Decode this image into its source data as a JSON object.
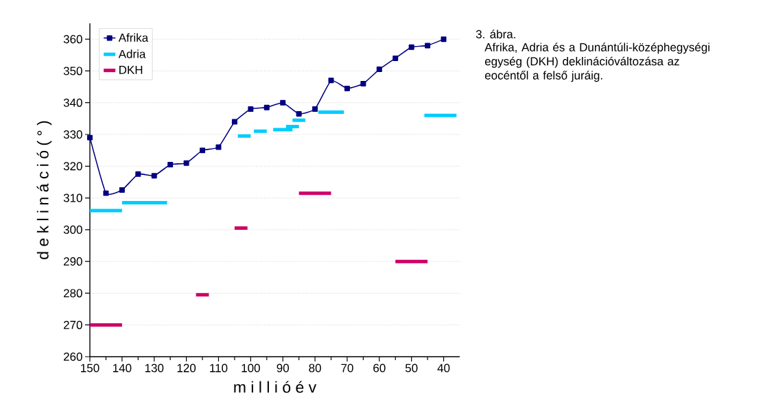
{
  "chart_data": {
    "type": "line",
    "xlabel": "m i l l i ó é v",
    "ylabel": "d e k l i n á c i ó ( ° )",
    "annotations": [
      "3. ábra.",
      "Afrika, Adria és a Dunántúli-középhegységi egység (DKH) deklinációváltozása az eocéntől a felső juráig."
    ],
    "xlim": [
      150,
      35
    ],
    "ylim": [
      260,
      365
    ],
    "xticks": [
      150,
      {
        "value": 145,
        "label": null
      },
      140,
      {
        "value": 135,
        "label": null
      },
      130,
      {
        "value": 125,
        "label": null
      },
      120,
      {
        "value": 115,
        "label": null
      },
      110,
      {
        "value": 105,
        "label": null
      },
      100,
      {
        "value": 95,
        "label": null
      },
      90,
      {
        "value": 85,
        "label": null
      },
      80,
      {
        "value": 75,
        "label": null
      },
      70,
      {
        "value": 65,
        "label": null
      },
      60,
      {
        "value": 55,
        "label": null
      },
      50,
      {
        "value": 45,
        "label": null
      },
      40
    ],
    "yticks": [
      260,
      270,
      280,
      290,
      300,
      310,
      320,
      330,
      340,
      350,
      360
    ],
    "grid": "y",
    "legend": "top left",
    "series": [
      {
        "name": "Afrika",
        "color": "#000080",
        "marker": "square",
        "line_style": "solid",
        "x": [
          150,
          145,
          140,
          135,
          130,
          125,
          120,
          115,
          110,
          105,
          100,
          95,
          90,
          85,
          80,
          75,
          70,
          65,
          60,
          55,
          50,
          45,
          40
        ],
        "values": [
          329,
          311.5,
          312.5,
          317.5,
          317,
          320.5,
          321,
          325,
          326,
          334,
          338,
          338.5,
          340,
          336.5,
          338,
          347,
          344.5,
          346,
          350.5,
          354,
          357.5,
          358,
          360
        ]
      },
      {
        "name": "Adria",
        "color": "#00ccff",
        "marker": "none",
        "line_style": "solid",
        "x": [
          150,
          140,
          null,
          140,
          126,
          null,
          104,
          100,
          null,
          99,
          95,
          null,
          93,
          87,
          null,
          89,
          85,
          null,
          87,
          83,
          null,
          79,
          71,
          null,
          46,
          36
        ],
        "values": [
          306,
          306,
          null,
          308.5,
          308.5,
          null,
          329.5,
          329.5,
          null,
          331,
          331,
          null,
          331.5,
          331.5,
          null,
          332.5,
          332.5,
          null,
          334.5,
          334.5,
          null,
          337,
          337,
          null,
          336,
          336
        ]
      },
      {
        "name": "DKH",
        "color": "#cc0066",
        "marker": "none",
        "line_style": "solid",
        "x": [
          150,
          140,
          null,
          117,
          113,
          null,
          105,
          101,
          null,
          85,
          75,
          null,
          55,
          45
        ],
        "values": [
          270,
          270,
          null,
          279.5,
          279.5,
          null,
          300.5,
          300.5,
          null,
          311.5,
          311.5,
          null,
          290,
          290
        ]
      }
    ]
  }
}
